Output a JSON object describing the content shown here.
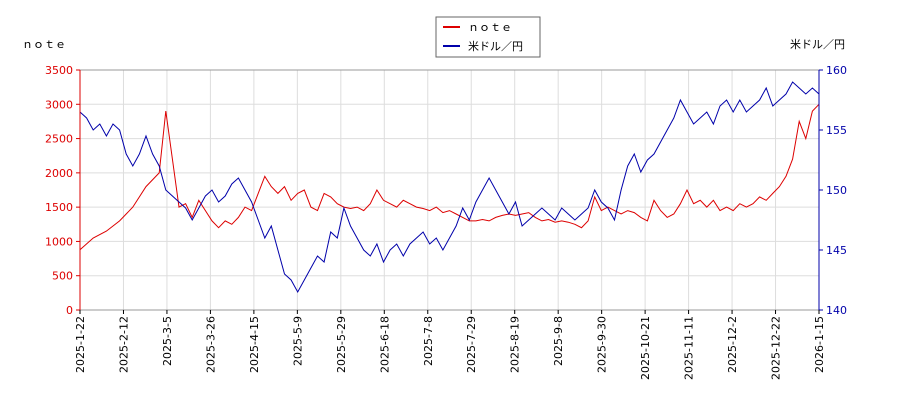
{
  "chart_data": {
    "type": "line",
    "left_axis_title": "ｎｏｔｅ",
    "right_axis_title": "米ドル／円",
    "legend": {
      "position": "top-center",
      "entries": [
        "ｎｏｔｅ",
        "米ドル／円"
      ]
    },
    "x_tick_labels": [
      "2025-1-22",
      "2025-2-12",
      "2025-3-5",
      "2025-3-26",
      "2025-4-15",
      "2025-5-9",
      "2025-5-29",
      "2025-6-18",
      "2025-7-8",
      "2025-7-29",
      "2025-8-19",
      "2025-9-8",
      "2025-9-30",
      "2025-10-21",
      "2025-11-11",
      "2025-12-2",
      "2025-12-22",
      "2026-1-15"
    ],
    "y_left": {
      "ticks": [
        0,
        500,
        1000,
        1500,
        2000,
        2500,
        3000,
        3500
      ],
      "range": [
        0,
        3500
      ]
    },
    "y_right": {
      "ticks": [
        140,
        145,
        150,
        155,
        160
      ],
      "range": [
        140,
        160
      ]
    },
    "grid": true,
    "series": [
      {
        "name": "ｎｏｔｅ",
        "axis": "left",
        "color": "#dd0000",
        "points": [
          [
            0,
            880
          ],
          [
            1,
            1050
          ],
          [
            2,
            1150
          ],
          [
            3,
            1300
          ],
          [
            4,
            1500
          ],
          [
            5,
            1800
          ],
          [
            6,
            2000
          ],
          [
            6.5,
            2900
          ],
          [
            7,
            2200
          ],
          [
            7.5,
            1500
          ],
          [
            8,
            1550
          ],
          [
            8.5,
            1350
          ],
          [
            9,
            1600
          ],
          [
            9.5,
            1450
          ],
          [
            10,
            1300
          ],
          [
            10.5,
            1200
          ],
          [
            11,
            1300
          ],
          [
            11.5,
            1250
          ],
          [
            12,
            1350
          ],
          [
            12.5,
            1500
          ],
          [
            13,
            1450
          ],
          [
            13.5,
            1700
          ],
          [
            14,
            1950
          ],
          [
            14.5,
            1800
          ],
          [
            15,
            1700
          ],
          [
            15.5,
            1800
          ],
          [
            16,
            1600
          ],
          [
            16.5,
            1700
          ],
          [
            17,
            1750
          ],
          [
            17.5,
            1500
          ],
          [
            18,
            1450
          ],
          [
            18.5,
            1700
          ],
          [
            19,
            1650
          ],
          [
            19.5,
            1550
          ],
          [
            20,
            1500
          ],
          [
            20.5,
            1480
          ],
          [
            21,
            1500
          ],
          [
            21.5,
            1450
          ],
          [
            22,
            1550
          ],
          [
            22.5,
            1750
          ],
          [
            23,
            1600
          ],
          [
            23.5,
            1550
          ],
          [
            24,
            1500
          ],
          [
            24.5,
            1600
          ],
          [
            25,
            1550
          ],
          [
            25.5,
            1500
          ],
          [
            26,
            1480
          ],
          [
            26.5,
            1450
          ],
          [
            27,
            1500
          ],
          [
            27.5,
            1420
          ],
          [
            28,
            1450
          ],
          [
            28.5,
            1400
          ],
          [
            29,
            1350
          ],
          [
            29.5,
            1300
          ],
          [
            30,
            1300
          ],
          [
            30.5,
            1320
          ],
          [
            31,
            1300
          ],
          [
            31.5,
            1350
          ],
          [
            32,
            1380
          ],
          [
            32.5,
            1400
          ],
          [
            33,
            1380
          ],
          [
            33.5,
            1400
          ],
          [
            34,
            1420
          ],
          [
            34.5,
            1350
          ],
          [
            35,
            1300
          ],
          [
            35.5,
            1320
          ],
          [
            36,
            1280
          ],
          [
            36.5,
            1300
          ],
          [
            37,
            1280
          ],
          [
            37.5,
            1250
          ],
          [
            38,
            1200
          ],
          [
            38.5,
            1300
          ],
          [
            39,
            1650
          ],
          [
            39.5,
            1450
          ],
          [
            40,
            1500
          ],
          [
            40.5,
            1450
          ],
          [
            41,
            1400
          ],
          [
            41.5,
            1450
          ],
          [
            42,
            1420
          ],
          [
            42.5,
            1350
          ],
          [
            43,
            1300
          ],
          [
            43.5,
            1600
          ],
          [
            44,
            1450
          ],
          [
            44.5,
            1350
          ],
          [
            45,
            1400
          ],
          [
            45.5,
            1550
          ],
          [
            46,
            1750
          ],
          [
            46.5,
            1550
          ],
          [
            47,
            1600
          ],
          [
            47.5,
            1500
          ],
          [
            48,
            1600
          ],
          [
            48.5,
            1450
          ],
          [
            49,
            1500
          ],
          [
            49.5,
            1450
          ],
          [
            50,
            1550
          ],
          [
            50.5,
            1500
          ],
          [
            51,
            1550
          ],
          [
            51.5,
            1650
          ],
          [
            52,
            1600
          ],
          [
            52.5,
            1700
          ],
          [
            53,
            1800
          ],
          [
            53.5,
            1950
          ],
          [
            54,
            2200
          ],
          [
            54.5,
            2750
          ],
          [
            55,
            2500
          ],
          [
            55.5,
            2900
          ],
          [
            56,
            3000
          ]
        ]
      },
      {
        "name": "米ドル／円",
        "axis": "right",
        "color": "#0000aa",
        "points": [
          [
            0,
            156.5
          ],
          [
            0.5,
            156
          ],
          [
            1,
            155
          ],
          [
            1.5,
            155.5
          ],
          [
            2,
            154.5
          ],
          [
            2.5,
            155.5
          ],
          [
            3,
            155
          ],
          [
            3.5,
            153
          ],
          [
            4,
            152
          ],
          [
            4.5,
            153
          ],
          [
            5,
            154.5
          ],
          [
            5.5,
            153
          ],
          [
            6,
            152
          ],
          [
            6.5,
            150
          ],
          [
            7,
            149.5
          ],
          [
            7.5,
            149
          ],
          [
            8,
            148.5
          ],
          [
            8.5,
            147.5
          ],
          [
            9,
            148.5
          ],
          [
            9.5,
            149.5
          ],
          [
            10,
            150
          ],
          [
            10.5,
            149
          ],
          [
            11,
            149.5
          ],
          [
            11.5,
            150.5
          ],
          [
            12,
            151
          ],
          [
            12.5,
            150
          ],
          [
            13,
            149
          ],
          [
            13.5,
            147.5
          ],
          [
            14,
            146
          ],
          [
            14.5,
            147
          ],
          [
            15,
            145
          ],
          [
            15.5,
            143
          ],
          [
            16,
            142.5
          ],
          [
            16.5,
            141.5
          ],
          [
            17,
            142.5
          ],
          [
            17.5,
            143.5
          ],
          [
            18,
            144.5
          ],
          [
            18.5,
            144
          ],
          [
            19,
            146.5
          ],
          [
            19.5,
            146
          ],
          [
            20,
            148.5
          ],
          [
            20.5,
            147
          ],
          [
            21,
            146
          ],
          [
            21.5,
            145
          ],
          [
            22,
            144.5
          ],
          [
            22.5,
            145.5
          ],
          [
            23,
            144
          ],
          [
            23.5,
            145
          ],
          [
            24,
            145.5
          ],
          [
            24.5,
            144.5
          ],
          [
            25,
            145.5
          ],
          [
            25.5,
            146
          ],
          [
            26,
            146.5
          ],
          [
            26.5,
            145.5
          ],
          [
            27,
            146
          ],
          [
            27.5,
            145
          ],
          [
            28,
            146
          ],
          [
            28.5,
            147
          ],
          [
            29,
            148.5
          ],
          [
            29.5,
            147.5
          ],
          [
            30,
            149
          ],
          [
            30.5,
            150
          ],
          [
            31,
            151
          ],
          [
            31.5,
            150
          ],
          [
            32,
            149
          ],
          [
            32.5,
            148
          ],
          [
            33,
            149
          ],
          [
            33.5,
            147
          ],
          [
            34,
            147.5
          ],
          [
            34.5,
            148
          ],
          [
            35,
            148.5
          ],
          [
            35.5,
            148
          ],
          [
            36,
            147.5
          ],
          [
            36.5,
            148.5
          ],
          [
            37,
            148
          ],
          [
            37.5,
            147.5
          ],
          [
            38,
            148
          ],
          [
            38.5,
            148.5
          ],
          [
            39,
            150
          ],
          [
            39.5,
            149
          ],
          [
            40,
            148.5
          ],
          [
            40.5,
            147.5
          ],
          [
            41,
            150
          ],
          [
            41.5,
            152
          ],
          [
            42,
            153
          ],
          [
            42.5,
            151.5
          ],
          [
            43,
            152.5
          ],
          [
            43.5,
            153
          ],
          [
            44,
            154
          ],
          [
            44.5,
            155
          ],
          [
            45,
            156
          ],
          [
            45.5,
            157.5
          ],
          [
            46,
            156.5
          ],
          [
            46.5,
            155.5
          ],
          [
            47,
            156
          ],
          [
            47.5,
            156.5
          ],
          [
            48,
            155.5
          ],
          [
            48.5,
            157
          ],
          [
            49,
            157.5
          ],
          [
            49.5,
            156.5
          ],
          [
            50,
            157.5
          ],
          [
            50.5,
            156.5
          ],
          [
            51,
            157
          ],
          [
            51.5,
            157.5
          ],
          [
            52,
            158.5
          ],
          [
            52.5,
            157
          ],
          [
            53,
            157.5
          ],
          [
            53.5,
            158
          ],
          [
            54,
            159
          ],
          [
            54.5,
            158.5
          ],
          [
            55,
            158
          ],
          [
            55.5,
            158.5
          ],
          [
            56,
            158
          ]
        ]
      }
    ]
  }
}
